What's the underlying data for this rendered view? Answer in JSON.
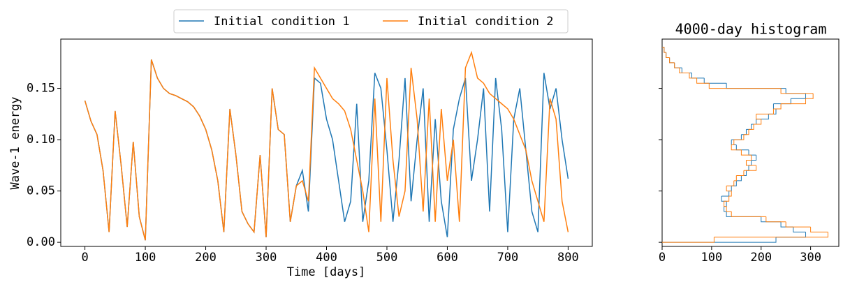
{
  "chart_data": [
    {
      "type": "line",
      "xlabel": "Time [days]",
      "ylabel": "Wave-1 energy",
      "x": [
        0,
        10,
        20,
        30,
        40,
        50,
        60,
        70,
        80,
        90,
        100,
        110,
        120,
        130,
        140,
        150,
        160,
        170,
        180,
        190,
        200,
        210,
        220,
        230,
        240,
        250,
        260,
        270,
        280,
        290,
        300,
        310,
        320,
        330,
        340,
        350,
        360,
        370,
        380,
        390,
        400,
        410,
        420,
        430,
        440,
        450,
        460,
        470,
        480,
        490,
        500,
        510,
        520,
        530,
        540,
        550,
        560,
        570,
        580,
        590,
        600,
        610,
        620,
        630,
        640,
        650,
        660,
        670,
        680,
        690,
        700,
        710,
        720,
        730,
        740,
        750,
        760,
        770,
        780,
        790,
        800
      ],
      "series": [
        {
          "name": "Initial condition 1",
          "color": "#1f77b4",
          "values": [
            0.138,
            0.118,
            0.105,
            0.07,
            0.01,
            0.128,
            0.075,
            0.015,
            0.098,
            0.025,
            0.002,
            0.178,
            0.16,
            0.15,
            0.145,
            0.143,
            0.14,
            0.137,
            0.132,
            0.123,
            0.11,
            0.09,
            0.06,
            0.01,
            0.13,
            0.085,
            0.03,
            0.018,
            0.01,
            0.085,
            0.005,
            0.15,
            0.11,
            0.105,
            0.02,
            0.055,
            0.07,
            0.03,
            0.16,
            0.155,
            0.12,
            0.1,
            0.06,
            0.02,
            0.04,
            0.135,
            0.02,
            0.06,
            0.165,
            0.15,
            0.09,
            0.02,
            0.08,
            0.16,
            0.04,
            0.1,
            0.15,
            0.02,
            0.12,
            0.04,
            0.005,
            0.11,
            0.14,
            0.16,
            0.06,
            0.1,
            0.15,
            0.03,
            0.16,
            0.11,
            0.01,
            0.12,
            0.15,
            0.09,
            0.03,
            0.01,
            0.165,
            0.13,
            0.15,
            0.1,
            0.062
          ]
        },
        {
          "name": "Initial condition 2",
          "color": "#ff7f0e",
          "values": [
            0.138,
            0.118,
            0.105,
            0.07,
            0.01,
            0.128,
            0.075,
            0.015,
            0.098,
            0.025,
            0.002,
            0.178,
            0.16,
            0.15,
            0.145,
            0.143,
            0.14,
            0.137,
            0.132,
            0.123,
            0.11,
            0.09,
            0.06,
            0.01,
            0.13,
            0.085,
            0.03,
            0.018,
            0.01,
            0.085,
            0.005,
            0.15,
            0.11,
            0.105,
            0.02,
            0.055,
            0.06,
            0.04,
            0.17,
            0.16,
            0.15,
            0.14,
            0.135,
            0.128,
            0.11,
            0.08,
            0.05,
            0.01,
            0.14,
            0.02,
            0.16,
            0.08,
            0.025,
            0.05,
            0.17,
            0.12,
            0.03,
            0.14,
            0.02,
            0.13,
            0.06,
            0.1,
            0.02,
            0.17,
            0.185,
            0.16,
            0.155,
            0.145,
            0.14,
            0.135,
            0.13,
            0.12,
            0.105,
            0.09,
            0.06,
            0.04,
            0.02,
            0.14,
            0.12,
            0.04,
            0.01
          ]
        }
      ],
      "xlim": [
        -40,
        840
      ],
      "xticks": [
        0,
        100,
        200,
        300,
        400,
        500,
        600,
        700,
        800
      ],
      "ylim": [
        -0.004,
        0.198
      ],
      "yticks": [
        {
          "value": 0,
          "label": "0.00"
        },
        {
          "value": 0.05,
          "label": "0.05"
        },
        {
          "value": 0.1,
          "label": "0.10"
        },
        {
          "value": 0.15,
          "label": "0.15"
        }
      ],
      "legend": "upper center"
    },
    {
      "type": "histogram",
      "title": "4000-day histogram",
      "bins": [
        0,
        0.005,
        0.01,
        0.015,
        0.02,
        0.025,
        0.03,
        0.035,
        0.04,
        0.045,
        0.05,
        0.055,
        0.06,
        0.065,
        0.07,
        0.075,
        0.08,
        0.085,
        0.09,
        0.095,
        0.1,
        0.105,
        0.11,
        0.115,
        0.12,
        0.125,
        0.13,
        0.135,
        0.14,
        0.145,
        0.15,
        0.155,
        0.16,
        0.165,
        0.17,
        0.175,
        0.18,
        0.185,
        0.19
      ],
      "series": [
        {
          "name": "Initial condition 1",
          "color": "#1f77b4",
          "values": [
            230,
            290,
            265,
            240,
            200,
            130,
            125,
            130,
            120,
            135,
            140,
            150,
            160,
            170,
            175,
            180,
            190,
            175,
            150,
            140,
            160,
            170,
            180,
            190,
            215,
            230,
            225,
            260,
            290,
            250,
            130,
            85,
            60,
            40,
            25,
            15,
            8,
            4
          ]
        },
        {
          "name": "Initial condition 2",
          "color": "#ff7f0e",
          "values": [
            105,
            335,
            300,
            250,
            210,
            140,
            130,
            125,
            135,
            140,
            130,
            145,
            150,
            165,
            190,
            170,
            180,
            160,
            140,
            145,
            165,
            175,
            185,
            200,
            190,
            225,
            240,
            290,
            305,
            240,
            95,
            70,
            55,
            35,
            25,
            15,
            8,
            4
          ]
        }
      ],
      "xlim": [
        0,
        357
      ],
      "xticks": [
        0,
        100,
        200,
        300
      ],
      "ylim": [
        -0.004,
        0.198
      ]
    }
  ]
}
